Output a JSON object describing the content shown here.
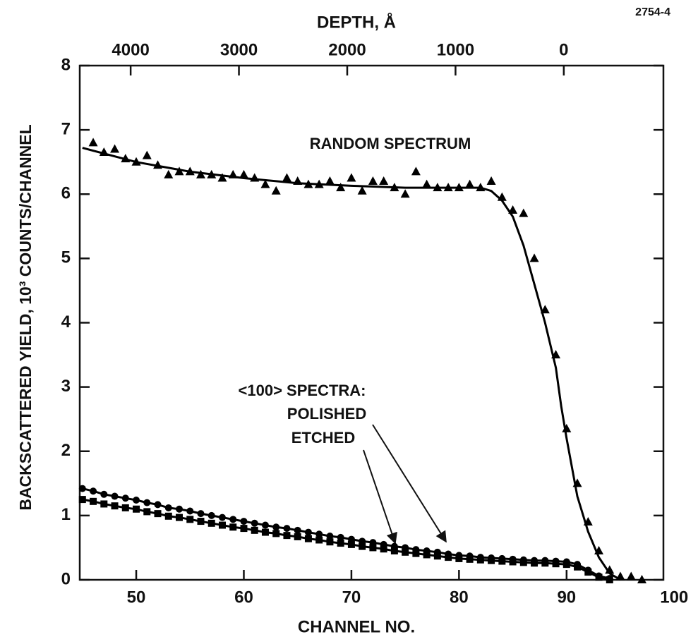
{
  "chart_data": {
    "type": "scatter",
    "figure_id": "2754-4",
    "xlabel": "CHANNEL NO.",
    "ylabel": "BACKSCATTERED YIELD, 10³ COUNTS/CHANNEL",
    "x2label": "DEPTH, Å",
    "xlim": [
      44.75,
      99
    ],
    "xticks": [
      50,
      60,
      70,
      80,
      90,
      100
    ],
    "x2lim": [
      4470,
      -920
    ],
    "x2ticks": [
      4000,
      3000,
      2000,
      1000,
      0
    ],
    "ylim": [
      0,
      8
    ],
    "yticks": [
      0,
      1,
      2,
      3,
      4,
      5,
      6,
      7,
      8
    ],
    "annotations": [
      "RANDOM SPECTRUM",
      "<100> SPECTRA:",
      "POLISHED",
      "ETCHED"
    ],
    "series": [
      {
        "marker": "triangle",
        "color": "#000000",
        "line": false,
        "x": [
          46,
          47,
          48,
          49,
          50,
          51,
          52,
          53,
          54,
          55,
          56,
          57,
          58,
          59,
          60,
          61,
          62,
          63,
          64,
          65,
          66,
          67,
          68,
          69,
          70,
          71,
          72,
          73,
          74,
          75,
          76,
          77,
          78,
          79,
          80,
          81,
          82,
          83,
          84,
          85,
          86,
          87,
          88,
          89,
          90,
          91,
          92,
          93,
          94,
          95,
          96,
          97
        ],
        "values": [
          6.8,
          6.65,
          6.7,
          6.55,
          6.5,
          6.6,
          6.45,
          6.3,
          6.35,
          6.35,
          6.3,
          6.3,
          6.25,
          6.3,
          6.3,
          6.25,
          6.15,
          6.05,
          6.25,
          6.2,
          6.15,
          6.15,
          6.2,
          6.1,
          6.25,
          6.05,
          6.2,
          6.2,
          6.1,
          6.0,
          6.35,
          6.15,
          6.1,
          6.1,
          6.1,
          6.15,
          6.1,
          6.2,
          5.95,
          5.75,
          5.7,
          5.0,
          4.2,
          3.5,
          2.35,
          1.5,
          0.9,
          0.45,
          0.15,
          0.05,
          0.05,
          0.0
        ]
      },
      {
        "marker": "none",
        "color": "#000000",
        "line": true,
        "x": [
          45,
          50,
          55,
          60,
          65,
          70,
          75,
          80,
          82,
          83,
          84,
          85,
          86,
          87,
          88,
          89,
          89.5,
          90,
          91,
          92,
          93,
          94,
          95
        ],
        "values": [
          6.72,
          6.5,
          6.35,
          6.25,
          6.17,
          6.13,
          6.1,
          6.1,
          6.1,
          6.05,
          5.9,
          5.65,
          5.2,
          4.6,
          4.0,
          3.3,
          2.7,
          2.2,
          1.3,
          0.75,
          0.35,
          0.1,
          0.0
        ]
      },
      {
        "marker": "circle",
        "color": "#000000",
        "line": true,
        "x": [
          45,
          46,
          47,
          48,
          49,
          50,
          51,
          52,
          53,
          54,
          55,
          56,
          57,
          58,
          59,
          60,
          61,
          62,
          63,
          64,
          65,
          66,
          67,
          68,
          69,
          70,
          71,
          72,
          73,
          74,
          75,
          76,
          77,
          78,
          79,
          80,
          81,
          82,
          83,
          84,
          85,
          86,
          87,
          88,
          89,
          90,
          91,
          92,
          93,
          94
        ],
        "values": [
          1.42,
          1.38,
          1.33,
          1.3,
          1.27,
          1.24,
          1.2,
          1.17,
          1.12,
          1.1,
          1.07,
          1.03,
          1.0,
          0.97,
          0.94,
          0.91,
          0.88,
          0.85,
          0.82,
          0.8,
          0.77,
          0.74,
          0.71,
          0.68,
          0.66,
          0.63,
          0.6,
          0.58,
          0.55,
          0.52,
          0.5,
          0.47,
          0.45,
          0.43,
          0.4,
          0.38,
          0.37,
          0.35,
          0.34,
          0.33,
          0.32,
          0.31,
          0.3,
          0.3,
          0.29,
          0.28,
          0.24,
          0.15,
          0.06,
          0.02
        ]
      },
      {
        "marker": "square",
        "color": "#000000",
        "line": true,
        "x": [
          45,
          46,
          47,
          48,
          49,
          50,
          51,
          52,
          53,
          54,
          55,
          56,
          57,
          58,
          59,
          60,
          61,
          62,
          63,
          64,
          65,
          66,
          67,
          68,
          69,
          70,
          71,
          72,
          73,
          74,
          75,
          76,
          77,
          78,
          79,
          80,
          81,
          82,
          83,
          84,
          85,
          86,
          87,
          88,
          89,
          90,
          91,
          92,
          93,
          94
        ],
        "values": [
          1.25,
          1.22,
          1.18,
          1.15,
          1.12,
          1.1,
          1.06,
          1.03,
          0.99,
          0.97,
          0.94,
          0.91,
          0.88,
          0.85,
          0.82,
          0.8,
          0.77,
          0.74,
          0.72,
          0.69,
          0.67,
          0.64,
          0.62,
          0.59,
          0.57,
          0.55,
          0.52,
          0.5,
          0.48,
          0.45,
          0.43,
          0.41,
          0.39,
          0.37,
          0.35,
          0.33,
          0.32,
          0.31,
          0.3,
          0.29,
          0.28,
          0.27,
          0.26,
          0.26,
          0.25,
          0.24,
          0.2,
          0.12,
          0.04,
          0.0
        ]
      }
    ]
  }
}
